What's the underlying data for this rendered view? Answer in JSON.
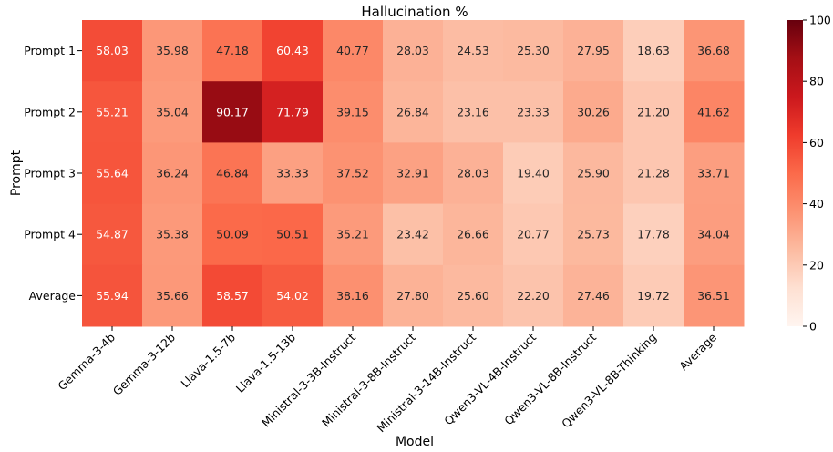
{
  "chart_data": {
    "type": "heatmap",
    "title": "Hallucination %",
    "xlabel": "Model",
    "ylabel": "Prompt",
    "x_categories": [
      "Gemma-3-4b",
      "Gemma-3-12b",
      "Llava-1.5-7b",
      "Llava-1.5-13b",
      "Ministral-3-3B-Instruct",
      "Ministral-3-8B-Instruct",
      "Ministral-3-14B-Instruct",
      "Qwen3-VL-4B-Instruct",
      "Qwen3-VL-8B-Instruct",
      "Qwen3-VL-8B-Thinking",
      "Average"
    ],
    "y_categories": [
      "Prompt 1",
      "Prompt 2",
      "Prompt 3",
      "Prompt 4",
      "Average"
    ],
    "values": [
      [
        58.03,
        35.98,
        47.18,
        60.43,
        40.77,
        28.03,
        24.53,
        25.3,
        27.95,
        18.63,
        36.68
      ],
      [
        55.21,
        35.04,
        90.17,
        71.79,
        39.15,
        26.84,
        23.16,
        23.33,
        30.26,
        21.2,
        41.62
      ],
      [
        55.64,
        36.24,
        46.84,
        33.33,
        37.52,
        32.91,
        28.03,
        19.4,
        25.9,
        21.28,
        33.71
      ],
      [
        54.87,
        35.38,
        50.09,
        50.51,
        35.21,
        23.42,
        26.66,
        20.77,
        25.73,
        17.78,
        34.04
      ],
      [
        55.94,
        35.66,
        58.57,
        54.02,
        38.16,
        27.8,
        25.6,
        22.2,
        27.46,
        19.72,
        36.51
      ]
    ],
    "value_format": "2 decimals",
    "colorscale": "Reds",
    "color_range": [
      0,
      100
    ],
    "colorbar_ticks": [
      0,
      20,
      40,
      60,
      80,
      100
    ],
    "colorbar_position": "right",
    "grid": false
  }
}
